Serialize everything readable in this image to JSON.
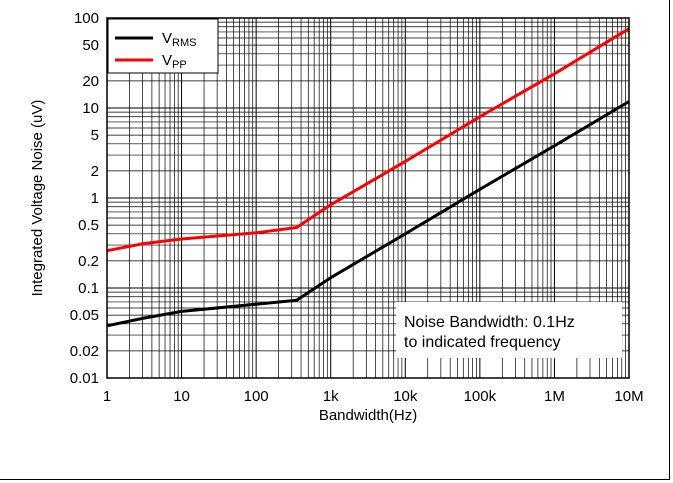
{
  "chart_data": {
    "type": "line",
    "title": "",
    "xlabel": "Bandwidth(Hz)",
    "ylabel": "Integrated Voltage Noise (uV)",
    "x_scale": "log",
    "y_scale": "log",
    "xlim": [
      1,
      10000000
    ],
    "ylim": [
      0.01,
      100
    ],
    "x_ticks": [
      {
        "value": 1,
        "label": "1"
      },
      {
        "value": 10,
        "label": "10"
      },
      {
        "value": 100,
        "label": "100"
      },
      {
        "value": 1000,
        "label": "1k"
      },
      {
        "value": 10000,
        "label": "10k"
      },
      {
        "value": 100000,
        "label": "100k"
      },
      {
        "value": 1000000,
        "label": "1M"
      },
      {
        "value": 10000000,
        "label": "10M"
      }
    ],
    "y_ticks": [
      {
        "value": 0.01,
        "label": "0.01"
      },
      {
        "value": 0.02,
        "label": "0.02"
      },
      {
        "value": 0.05,
        "label": "0.05"
      },
      {
        "value": 0.1,
        "label": "0.1"
      },
      {
        "value": 0.2,
        "label": "0.2"
      },
      {
        "value": 0.5,
        "label": "0.5"
      },
      {
        "value": 1,
        "label": "1"
      },
      {
        "value": 2,
        "label": "2"
      },
      {
        "value": 5,
        "label": "5"
      },
      {
        "value": 10,
        "label": "10"
      },
      {
        "value": 20,
        "label": "20"
      },
      {
        "value": 50,
        "label": "50"
      },
      {
        "value": 100,
        "label": "100"
      }
    ],
    "grid": true,
    "legend_position": "top-left",
    "series": [
      {
        "name_main": "V",
        "name_sub": "RMS",
        "color": "#000000",
        "points": [
          [
            1,
            0.038
          ],
          [
            3,
            0.046
          ],
          [
            10,
            0.055
          ],
          [
            100,
            0.066
          ],
          [
            350,
            0.073
          ],
          [
            1000,
            0.13
          ],
          [
            10000,
            0.4
          ],
          [
            100000,
            1.25
          ],
          [
            1000000,
            3.8
          ],
          [
            10000000,
            11.8
          ]
        ]
      },
      {
        "name_main": "V",
        "name_sub": "PP",
        "color": "#ff0000",
        "points": [
          [
            1,
            0.26
          ],
          [
            3,
            0.31
          ],
          [
            10,
            0.35
          ],
          [
            100,
            0.41
          ],
          [
            350,
            0.47
          ],
          [
            1000,
            0.84
          ],
          [
            10000,
            2.55
          ],
          [
            100000,
            8.0
          ],
          [
            1000000,
            24.0
          ],
          [
            10000000,
            76.0
          ]
        ]
      }
    ],
    "annotation": {
      "line1": "Noise Bandwidth: 0.1Hz",
      "line2": "to indicated frequency"
    }
  }
}
